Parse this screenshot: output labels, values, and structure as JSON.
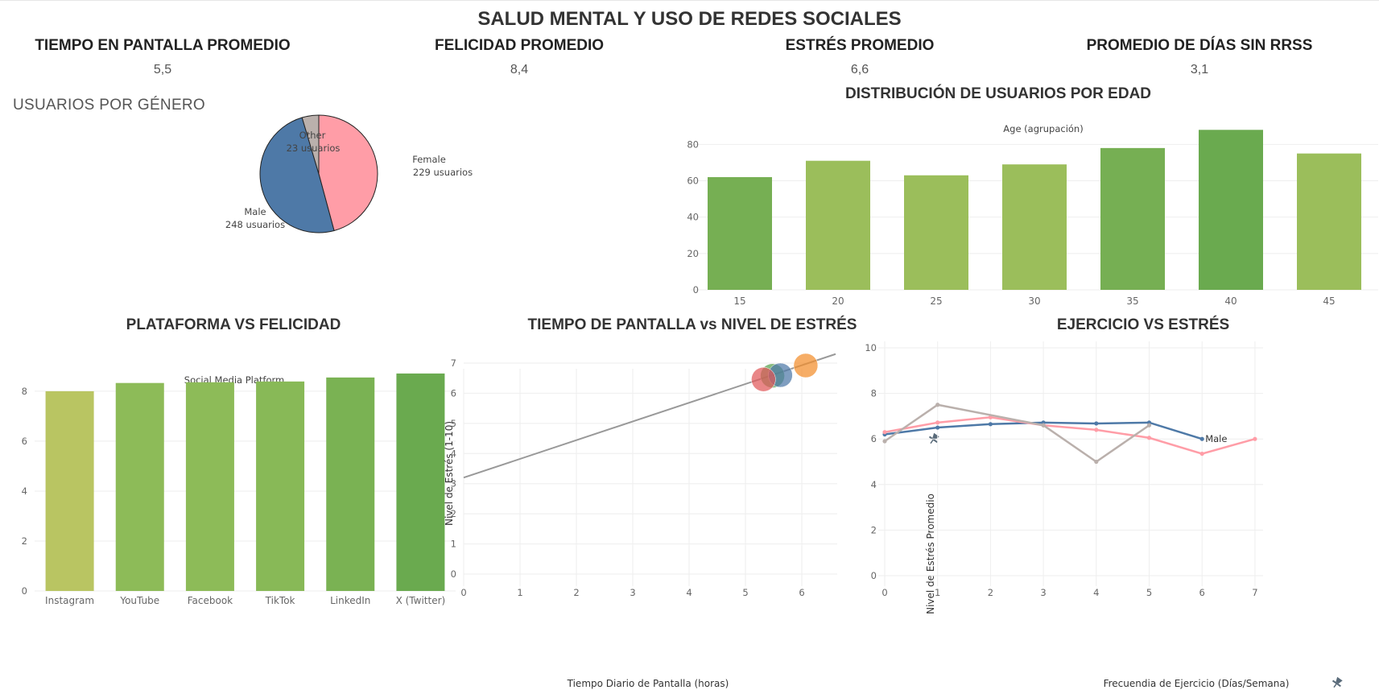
{
  "dashboard": {
    "title": "SALUD MENTAL Y USO DE REDES SOCIALES"
  },
  "kpis": [
    {
      "label": "TIEMPO EN PANTALLA PROMEDIO",
      "value": "5,5"
    },
    {
      "label": "FELICIDAD PROMEDIO",
      "value": "8,4"
    },
    {
      "label": "ESTRÉS PROMEDIO",
      "value": "6,6"
    },
    {
      "label": "PROMEDIO DE DÍAS SIN RRSS",
      "value": "3,1"
    }
  ],
  "colors": {
    "female": "#FF9DA7",
    "male": "#4E79A7",
    "other": "#BAB0AC",
    "green_dark": "#6AAA4F",
    "green_light": "#A4C25F"
  },
  "chart_data": [
    {
      "id": "gender",
      "type": "pie",
      "title": "USUARIOS POR GÉNERO",
      "slices": [
        {
          "label": "Female",
          "value": 229,
          "value_label": "229 usuarios",
          "color": "#FF9DA7"
        },
        {
          "label": "Male",
          "value": 248,
          "value_label": "248 usuarios",
          "color": "#4E79A7"
        },
        {
          "label": "Other",
          "value": 23,
          "value_label": "23 usuarios",
          "color": "#BAB0AC"
        }
      ]
    },
    {
      "id": "age",
      "type": "bar",
      "title": "DISTRIBUCIÓN DE USUARIOS POR EDAD",
      "subtitle": "Age (agrupación)",
      "categories": [
        "15",
        "20",
        "25",
        "30",
        "35",
        "40",
        "45"
      ],
      "values": [
        62,
        71,
        63,
        69,
        78,
        88,
        75
      ],
      "colors": [
        "#76AF53",
        "#9BBE5B",
        "#9BBE5B",
        "#9BBE5B",
        "#76AF53",
        "#6AAA4F",
        "#9BBE5B"
      ],
      "yticks": [
        0,
        20,
        40,
        60,
        80
      ],
      "ylim": [
        0,
        93
      ]
    },
    {
      "id": "platform",
      "type": "bar",
      "title": "PLATAFORMA VS FELICIDAD",
      "subtitle": "Social Media Platform",
      "categories": [
        "Instagram",
        "YouTube",
        "Facebook",
        "TikTok",
        "LinkedIn",
        "X (Twitter)"
      ],
      "values": [
        8.0,
        8.33,
        8.36,
        8.39,
        8.55,
        8.71
      ],
      "colors": [
        "#B9C562",
        "#8DBB58",
        "#8DBB58",
        "#88B957",
        "#7AB253",
        "#6AAA4F"
      ],
      "yticks": [
        0,
        2,
        4,
        6,
        8
      ],
      "ylim": [
        0,
        8.9
      ]
    },
    {
      "id": "screen_stress",
      "type": "scatter",
      "title": "TIEMPO DE PANTALLA vs NIVEL DE ESTRÉS",
      "xlabel": "Tiempo Diario de Pantalla (horas)",
      "ylabel": "Nivel de Estrés (1-10)",
      "xticks": [
        0,
        1,
        2,
        3,
        4,
        5,
        6
      ],
      "yticks": [
        0,
        1,
        2,
        3,
        4,
        5,
        6,
        7
      ],
      "xlim": [
        -0.15,
        6.6
      ],
      "ylim": [
        -0.2,
        7.6
      ],
      "points": [
        {
          "x": 6.07,
          "y": 6.92,
          "color": "#F28E2B"
        },
        {
          "x": 5.48,
          "y": 6.58,
          "color": "#59A14F"
        },
        {
          "x": 5.62,
          "y": 6.6,
          "color": "#4E79A7"
        },
        {
          "x": 5.32,
          "y": 6.46,
          "color": "#E15759"
        }
      ],
      "trend": {
        "x0": -0.15,
        "y0": 3.2,
        "x1": 6.6,
        "y1": 7.3,
        "color": "#999999"
      }
    },
    {
      "id": "exercise_stress",
      "type": "line",
      "title": "EJERCICIO VS ESTRÉS",
      "xlabel": "Frecuendia de Ejercicio (Días/Semana)",
      "ylabel": "Nivel de Estrés Promedio",
      "xticks": [
        0,
        1,
        2,
        3,
        4,
        5,
        6,
        7
      ],
      "yticks": [
        0,
        2,
        4,
        6,
        8,
        10
      ],
      "xlim": [
        0,
        7
      ],
      "ylim": [
        -0.2,
        10.3
      ],
      "series": [
        {
          "name": "Male",
          "color": "#4E79A7",
          "x": [
            0,
            1,
            2,
            3,
            4,
            5,
            6
          ],
          "y": [
            6.2,
            6.5,
            6.65,
            6.72,
            6.68,
            6.72,
            6.0
          ]
        },
        {
          "name": "",
          "color": "#FF9DA7",
          "x": [
            0,
            1,
            2,
            3,
            4,
            5,
            6,
            7
          ],
          "y": [
            6.3,
            6.72,
            6.95,
            6.6,
            6.4,
            6.05,
            5.35,
            6.0
          ]
        },
        {
          "name": "",
          "color": "#BAB0AC",
          "x": [
            0,
            1,
            3,
            4,
            5
          ],
          "y": [
            5.9,
            7.5,
            6.6,
            5.0,
            6.6
          ]
        }
      ]
    }
  ]
}
